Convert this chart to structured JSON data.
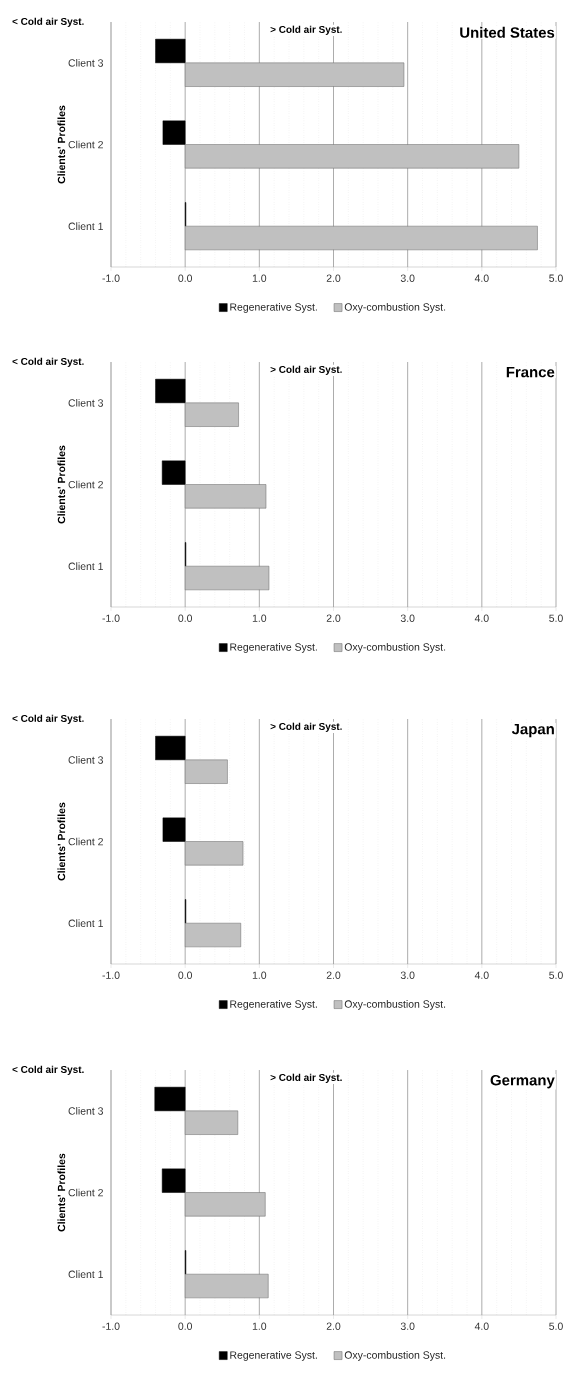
{
  "chart_data": [
    {
      "type": "bar",
      "orientation": "horizontal",
      "title": "United States",
      "ylabel": "Clients' Profiles",
      "categories": [
        "Client 3",
        "Client 2",
        "Client 1"
      ],
      "series": [
        {
          "name": "Regenerative Syst.",
          "color": "#000000",
          "values": [
            -0.4,
            -0.3,
            0.01
          ]
        },
        {
          "name": "Oxy-combustion Syst.",
          "color": "#c0c0c0",
          "values": [
            2.95,
            4.5,
            4.75
          ]
        }
      ],
      "xlim": [
        -1,
        5
      ],
      "xticks": [
        {
          "value": -1,
          "label": "-1.0"
        },
        {
          "value": 0,
          "label": "0.0"
        },
        {
          "value": 1,
          "label": "1.0"
        },
        {
          "value": 2,
          "label": "2.0"
        },
        {
          "value": 3,
          "label": "3.0"
        },
        {
          "value": 4,
          "label": "4.0"
        },
        {
          "value": 5,
          "label": "5.0"
        }
      ],
      "grid": "x",
      "legend": "bottom",
      "annotations": [
        "< Cold air Syst.",
        "> Cold air Syst."
      ]
    },
    {
      "type": "bar",
      "orientation": "horizontal",
      "title": "France",
      "ylabel": "Clients' Profiles",
      "categories": [
        "Client 3",
        "Client 2",
        "Client 1"
      ],
      "series": [
        {
          "name": "Regenerative Syst.",
          "color": "#000000",
          "values": [
            -0.4,
            -0.31,
            0.01
          ]
        },
        {
          "name": "Oxy-combustion Syst.",
          "color": "#c0c0c0",
          "values": [
            0.72,
            1.09,
            1.13
          ]
        }
      ],
      "xlim": [
        -1,
        5
      ],
      "xticks": [
        {
          "value": -1,
          "label": "-1.0"
        },
        {
          "value": 0,
          "label": "0.0"
        },
        {
          "value": 1,
          "label": "1.0"
        },
        {
          "value": 2,
          "label": "2.0"
        },
        {
          "value": 3,
          "label": "3.0"
        },
        {
          "value": 4,
          "label": "4.0"
        },
        {
          "value": 5,
          "label": "5.0"
        }
      ],
      "grid": "x",
      "legend": "bottom",
      "annotations": [
        "< Cold air Syst.",
        "> Cold air Syst."
      ]
    },
    {
      "type": "bar",
      "orientation": "horizontal",
      "title": "Japan",
      "ylabel": "Clients' Profiles",
      "categories": [
        "Client 3",
        "Client 2",
        "Client 1"
      ],
      "series": [
        {
          "name": "Regenerative Syst.",
          "color": "#000000",
          "values": [
            -0.4,
            -0.3,
            0.01
          ]
        },
        {
          "name": "Oxy-combustion Syst.",
          "color": "#c0c0c0",
          "values": [
            0.57,
            0.78,
            0.75
          ]
        }
      ],
      "xlim": [
        -1,
        5
      ],
      "xticks": [
        {
          "value": -1,
          "label": "-1.0"
        },
        {
          "value": 0,
          "label": "0.0"
        },
        {
          "value": 1,
          "label": "1.0"
        },
        {
          "value": 2,
          "label": "2.0"
        },
        {
          "value": 3,
          "label": "3.0"
        },
        {
          "value": 4,
          "label": "4.0"
        },
        {
          "value": 5,
          "label": "5.0"
        }
      ],
      "grid": "x",
      "legend": "bottom",
      "annotations": [
        "< Cold air Syst.",
        "> Cold air Syst."
      ]
    },
    {
      "type": "bar",
      "orientation": "horizontal",
      "title": "Germany",
      "ylabel": "Clients' Profiles",
      "categories": [
        "Client 3",
        "Client 2",
        "Client 1"
      ],
      "series": [
        {
          "name": "Regenerative Syst.",
          "color": "#000000",
          "values": [
            -0.41,
            -0.31,
            0.01
          ]
        },
        {
          "name": "Oxy-combustion Syst.",
          "color": "#c0c0c0",
          "values": [
            0.71,
            1.08,
            1.12
          ]
        }
      ],
      "xlim": [
        -1,
        5
      ],
      "xticks": [
        {
          "value": -1,
          "label": "-1.0"
        },
        {
          "value": 0,
          "label": "0.0"
        },
        {
          "value": 1,
          "label": "1.0"
        },
        {
          "value": 2,
          "label": "2.0"
        },
        {
          "value": 3,
          "label": "3.0"
        },
        {
          "value": 4,
          "label": "4.0"
        },
        {
          "value": 5,
          "label": "5.0"
        }
      ],
      "grid": "x",
      "legend": "bottom",
      "annotations": [
        "< Cold air Syst.",
        "> Cold air Syst."
      ]
    }
  ]
}
